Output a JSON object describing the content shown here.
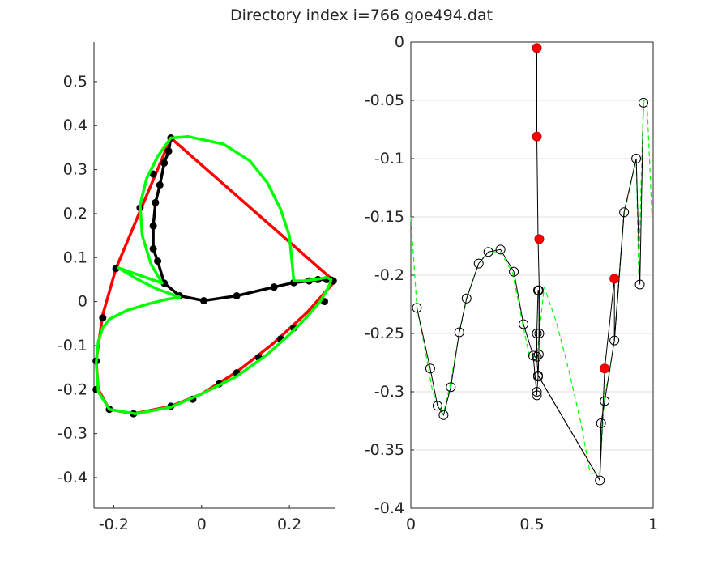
{
  "title": "Directory index i=766 goe494.dat",
  "colors": {
    "red": "#ff0000",
    "green": "#00ff00",
    "black": "#000000",
    "axis": "#262626",
    "grid": "#dfdfdf"
  },
  "chart_data": [
    {
      "type": "line",
      "xlim": [
        -0.245,
        0.305
      ],
      "ylim": [
        -0.47,
        0.59
      ],
      "grid": false,
      "xticks": [
        -0.2,
        0,
        0.2
      ],
      "xtick_labels": [
        "-0.2",
        "0",
        "0.2"
      ],
      "yticks": [
        -0.4,
        -0.3,
        -0.2,
        -0.1,
        0,
        0.1,
        0.2,
        0.3,
        0.4,
        0.5
      ],
      "ytick_labels": [
        "-0.4",
        "-0.3",
        "-0.2",
        "-0.1",
        "0",
        "0.1",
        "0.2",
        "0.3",
        "0.4",
        "0.5"
      ],
      "series": [
        {
          "color": "#ff0000",
          "style": "thick",
          "x": [
            -0.07,
            -0.195,
            -0.225,
            -0.24,
            -0.235,
            -0.21,
            -0.155,
            -0.07,
            0.0,
            0.08,
            0.16,
            0.24,
            0.28,
            0.298,
            0.3,
            0.292,
            -0.07
          ],
          "y": [
            0.372,
            0.075,
            -0.03,
            -0.135,
            -0.2,
            -0.245,
            -0.255,
            -0.238,
            -0.21,
            -0.16,
            -0.098,
            -0.025,
            0.02,
            0.04,
            0.05,
            0.055,
            0.372
          ]
        },
        {
          "color": "#000000",
          "style": "thick-markers",
          "x": [
            -0.07,
            -0.075,
            -0.085,
            -0.095,
            -0.105,
            -0.11,
            -0.11,
            -0.1,
            -0.085,
            -0.05,
            0.005,
            0.08,
            0.165,
            0.21,
            0.245,
            0.265,
            0.285,
            0.295,
            0.3
          ],
          "y": [
            0.372,
            0.342,
            0.315,
            0.265,
            0.225,
            0.172,
            0.12,
            0.092,
            0.042,
            0.013,
            0.002,
            0.013,
            0.033,
            0.043,
            0.047,
            0.05,
            0.05,
            0.049,
            0.047
          ]
        },
        {
          "color": "#000000",
          "style": "markers-only",
          "x": [
            -0.11,
            -0.14,
            -0.195,
            -0.225,
            -0.24,
            -0.24,
            -0.21,
            -0.155,
            -0.07,
            -0.02,
            0.04,
            0.08,
            0.13,
            0.18,
            0.21,
            0.28
          ],
          "y": [
            0.29,
            0.213,
            0.075,
            -0.037,
            -0.135,
            -0.2,
            -0.245,
            -0.255,
            -0.238,
            -0.222,
            -0.187,
            -0.162,
            -0.127,
            -0.085,
            -0.06,
            0.0
          ]
        },
        {
          "color": "#00ff00",
          "style": "thick",
          "x": [
            -0.07,
            -0.03,
            0.05,
            0.11,
            0.15,
            0.18,
            0.2,
            0.205,
            0.208,
            0.21,
            0.23,
            0.26,
            0.285,
            0.295,
            0.292,
            0.285,
            0.27,
            0.24,
            0.2,
            0.15,
            0.08,
            0.0,
            -0.07,
            -0.15,
            -0.21,
            -0.235,
            -0.24,
            -0.235,
            -0.225,
            -0.21,
            -0.17,
            -0.12,
            -0.08,
            -0.05,
            -0.1,
            -0.145,
            -0.19,
            -0.09,
            -0.115,
            -0.135,
            -0.14,
            -0.125,
            -0.1,
            -0.07
          ],
          "y": [
            0.372,
            0.375,
            0.358,
            0.32,
            0.27,
            0.21,
            0.15,
            0.1,
            0.07,
            0.047,
            0.047,
            0.05,
            0.055,
            0.05,
            0.04,
            0.025,
            0.0,
            -0.035,
            -0.075,
            -0.12,
            -0.17,
            -0.21,
            -0.24,
            -0.255,
            -0.245,
            -0.205,
            -0.14,
            -0.09,
            -0.06,
            -0.04,
            -0.02,
            -0.005,
            0.005,
            0.01,
            0.028,
            0.05,
            0.077,
            0.042,
            0.085,
            0.15,
            0.22,
            0.28,
            0.33,
            0.372
          ]
        }
      ]
    },
    {
      "type": "line",
      "xlim": [
        0,
        1
      ],
      "ylim": [
        -0.4,
        0
      ],
      "grid": true,
      "xticks": [
        0,
        0.5,
        1
      ],
      "xtick_labels": [
        "0",
        "0.5",
        "1"
      ],
      "yticks": [
        -0.4,
        -0.35,
        -0.3,
        -0.25,
        -0.2,
        -0.15,
        -0.1,
        -0.05,
        0
      ],
      "ytick_labels": [
        "-0.4",
        "-0.35",
        "-0.3",
        "-0.25",
        "-0.2",
        "-0.15",
        "-0.1",
        "-0.05",
        "0"
      ],
      "series": [
        {
          "color": "#00ff00",
          "style": "dashed",
          "x": [
            0.0,
            0.025,
            0.06,
            0.09,
            0.115,
            0.135,
            0.16,
            0.2,
            0.23,
            0.28,
            0.32,
            0.37,
            0.42,
            0.46,
            0.49,
            0.52,
            0.55,
            0.6,
            0.65,
            0.7,
            0.74,
            0.78,
            0.8,
            0.815,
            0.84,
            0.88,
            0.93,
            0.94,
            0.96,
            0.975,
            0.995
          ],
          "y": [
            -0.15,
            -0.228,
            -0.265,
            -0.3,
            -0.312,
            -0.318,
            -0.297,
            -0.25,
            -0.22,
            -0.19,
            -0.18,
            -0.18,
            -0.198,
            -0.24,
            -0.27,
            -0.27,
            -0.21,
            -0.24,
            -0.28,
            -0.325,
            -0.37,
            -0.37,
            -0.3,
            -0.29,
            -0.255,
            -0.148,
            -0.1,
            -0.2,
            -0.05,
            -0.052,
            -0.15
          ]
        },
        {
          "color": "#000000",
          "style": "line-circles",
          "x": [
            0.025,
            0.08,
            0.11,
            0.135,
            0.165,
            0.2,
            0.23,
            0.28,
            0.32,
            0.37,
            0.425,
            0.465,
            0.505,
            0.52,
            0.52,
            0.525,
            0.52,
            0.52,
            0.525,
            0.528,
            0.53,
            0.528,
            0.525,
            0.78,
            0.785,
            0.8,
            0.84,
            0.88,
            0.93,
            0.945,
            0.96
          ],
          "y": [
            -0.228,
            -0.28,
            -0.312,
            -0.32,
            -0.296,
            -0.249,
            -0.22,
            -0.19,
            -0.18,
            -0.178,
            -0.197,
            -0.242,
            -0.269,
            -0.303,
            -0.3,
            -0.287,
            -0.27,
            -0.25,
            -0.213,
            -0.213,
            -0.25,
            -0.268,
            -0.286,
            -0.376,
            -0.327,
            -0.308,
            -0.256,
            -0.146,
            -0.1,
            -0.208,
            -0.052
          ]
        },
        {
          "color": "#000000",
          "style": "thin-line",
          "x": [
            0.52,
            0.52,
            0.525,
            0.53,
            0.528,
            0.525,
            0.78,
            0.78,
            0.8,
            0.84,
            0.84,
            0.88
          ],
          "y": [
            -0.005,
            -0.081,
            -0.169,
            -0.213,
            -0.268,
            -0.286,
            -0.376,
            -0.376,
            -0.28,
            -0.203,
            -0.256,
            -0.146
          ]
        },
        {
          "color": "#ff0000",
          "style": "red-dots",
          "x": [
            0.52,
            0.52,
            0.53,
            0.8,
            0.84
          ],
          "y": [
            -0.005,
            -0.081,
            -0.169,
            -0.28,
            -0.203
          ]
        }
      ]
    }
  ]
}
